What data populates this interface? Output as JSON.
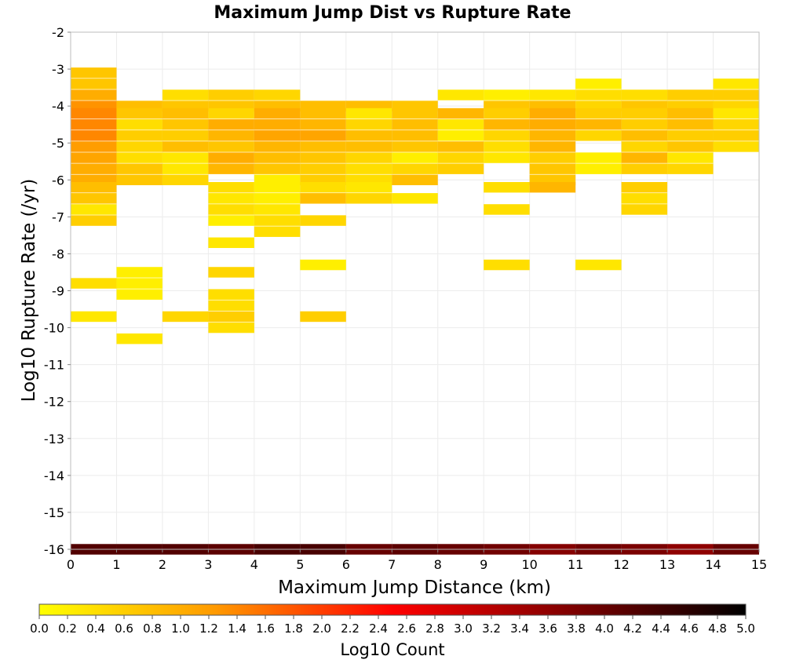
{
  "chart_data": {
    "type": "heatmap",
    "title": "Maximum Jump Dist vs Rupture Rate",
    "xlabel": "Maximum Jump Distance (km)",
    "ylabel": "Log10 Rupture Rate (/yr)",
    "xlim": [
      0,
      15
    ],
    "ylim": [
      -16,
      -2
    ],
    "x_ticks": [
      "0",
      "1",
      "2",
      "3",
      "4",
      "5",
      "6",
      "7",
      "8",
      "9",
      "10",
      "11",
      "12",
      "13",
      "14",
      "15"
    ],
    "y_ticks": [
      "-2",
      "-3",
      "-4",
      "-5",
      "-6",
      "-7",
      "-8",
      "-9",
      "-10",
      "-11",
      "-12",
      "-13",
      "-14",
      "-15",
      "-16"
    ],
    "grid": true,
    "cell_width": 1,
    "cell_height": 0.2857,
    "colorbar": {
      "label": "Log10 Count",
      "range": [
        0,
        5
      ],
      "colors": [
        "#ffff00",
        "#ff9900",
        "#ff0000",
        "#800000",
        "#000000"
      ],
      "ticks": [
        "0.0",
        "0.2",
        "0.4",
        "0.6",
        "0.8",
        "1.0",
        "1.2",
        "1.4",
        "1.6",
        "1.8",
        "2.0",
        "2.2",
        "2.4",
        "2.6",
        "2.8",
        "3.0",
        "3.2",
        "3.4",
        "3.6",
        "3.8",
        "4.0",
        "4.2",
        "4.4",
        "4.6",
        "4.8",
        "5.0"
      ]
    },
    "cells": [
      [
        0,
        -3.1,
        0.7
      ],
      [
        0,
        -3.4,
        0.7
      ],
      [
        0,
        -3.7,
        1.0
      ],
      [
        0,
        -4.0,
        1.3
      ],
      [
        0,
        -4.2,
        1.4
      ],
      [
        0,
        -4.5,
        1.4
      ],
      [
        0,
        -4.8,
        1.4
      ],
      [
        0,
        -5.1,
        1.2
      ],
      [
        0,
        -5.4,
        1.1
      ],
      [
        0,
        -5.7,
        1.0
      ],
      [
        0,
        -6.0,
        1.0
      ],
      [
        0,
        -6.2,
        0.8
      ],
      [
        0,
        -6.5,
        0.7
      ],
      [
        0,
        -6.8,
        0.3
      ],
      [
        0,
        -7.1,
        0.6
      ],
      [
        0,
        -8.8,
        0.4
      ],
      [
        0,
        -9.7,
        0.3
      ],
      [
        1,
        -4.0,
        0.8
      ],
      [
        1,
        -4.2,
        0.7
      ],
      [
        1,
        -4.5,
        0.4
      ],
      [
        1,
        -4.8,
        0.6
      ],
      [
        1,
        -5.1,
        0.5
      ],
      [
        1,
        -5.4,
        0.4
      ],
      [
        1,
        -5.7,
        0.7
      ],
      [
        1,
        -6.0,
        0.7
      ],
      [
        1,
        -8.5,
        0.2
      ],
      [
        1,
        -8.8,
        0.2
      ],
      [
        1,
        -9.1,
        0.2
      ],
      [
        1,
        -10.3,
        0.3
      ],
      [
        2,
        -3.7,
        0.4
      ],
      [
        2,
        -4.0,
        0.7
      ],
      [
        2,
        -4.2,
        0.8
      ],
      [
        2,
        -4.5,
        0.7
      ],
      [
        2,
        -4.8,
        0.6
      ],
      [
        2,
        -5.1,
        0.8
      ],
      [
        2,
        -5.4,
        0.3
      ],
      [
        2,
        -5.7,
        0.3
      ],
      [
        2,
        -6.0,
        0.5
      ],
      [
        2,
        -9.7,
        0.5
      ],
      [
        3,
        -3.7,
        0.6
      ],
      [
        3,
        -4.0,
        0.7
      ],
      [
        3,
        -4.2,
        0.5
      ],
      [
        3,
        -4.5,
        1.0
      ],
      [
        3,
        -4.8,
        0.9
      ],
      [
        3,
        -5.1,
        0.7
      ],
      [
        3,
        -5.4,
        1.0
      ],
      [
        3,
        -5.7,
        0.9
      ],
      [
        3,
        -6.2,
        0.4
      ],
      [
        3,
        -6.5,
        0.3
      ],
      [
        3,
        -6.8,
        0.4
      ],
      [
        3,
        -7.1,
        0.2
      ],
      [
        3,
        -7.7,
        0.3
      ],
      [
        3,
        -8.5,
        0.5
      ],
      [
        3,
        -9.1,
        0.4
      ],
      [
        3,
        -9.4,
        0.4
      ],
      [
        3,
        -9.7,
        0.6
      ],
      [
        3,
        -10.0,
        0.4
      ],
      [
        4,
        -3.7,
        0.5
      ],
      [
        4,
        -4.0,
        0.8
      ],
      [
        4,
        -4.2,
        1.0
      ],
      [
        4,
        -4.5,
        1.0
      ],
      [
        4,
        -4.8,
        1.1
      ],
      [
        4,
        -5.1,
        0.9
      ],
      [
        4,
        -5.4,
        0.8
      ],
      [
        4,
        -5.7,
        0.7
      ],
      [
        4,
        -6.0,
        0.2
      ],
      [
        4,
        -6.2,
        0.2
      ],
      [
        4,
        -6.5,
        0.2
      ],
      [
        4,
        -6.8,
        0.3
      ],
      [
        4,
        -7.1,
        0.4
      ],
      [
        4,
        -7.4,
        0.4
      ],
      [
        5,
        -4.0,
        0.8
      ],
      [
        5,
        -4.2,
        0.8
      ],
      [
        5,
        -4.5,
        0.9
      ],
      [
        5,
        -4.8,
        1.1
      ],
      [
        5,
        -5.1,
        0.8
      ],
      [
        5,
        -5.4,
        0.7
      ],
      [
        5,
        -5.7,
        0.6
      ],
      [
        5,
        -6.0,
        0.6
      ],
      [
        5,
        -6.2,
        0.4
      ],
      [
        5,
        -6.5,
        0.8
      ],
      [
        5,
        -7.1,
        0.5
      ],
      [
        5,
        -8.3,
        0.2
      ],
      [
        5,
        -9.7,
        0.6
      ],
      [
        6,
        -4.0,
        0.8
      ],
      [
        6,
        -4.2,
        0.3
      ],
      [
        6,
        -4.5,
        0.5
      ],
      [
        6,
        -4.8,
        0.8
      ],
      [
        6,
        -5.1,
        0.8
      ],
      [
        6,
        -5.4,
        0.5
      ],
      [
        6,
        -5.7,
        0.4
      ],
      [
        6,
        -6.0,
        0.4
      ],
      [
        6,
        -6.2,
        0.3
      ],
      [
        6,
        -6.5,
        0.5
      ],
      [
        7,
        -4.0,
        0.7
      ],
      [
        7,
        -4.2,
        0.7
      ],
      [
        7,
        -4.5,
        0.8
      ],
      [
        7,
        -4.8,
        0.8
      ],
      [
        7,
        -5.1,
        0.7
      ],
      [
        7,
        -5.4,
        0.2
      ],
      [
        7,
        -5.7,
        0.5
      ],
      [
        7,
        -6.0,
        0.8
      ],
      [
        7,
        -6.5,
        0.3
      ],
      [
        8,
        -3.7,
        0.3
      ],
      [
        8,
        -4.2,
        0.9
      ],
      [
        8,
        -4.5,
        0.3
      ],
      [
        8,
        -4.8,
        0.2
      ],
      [
        8,
        -5.1,
        0.8
      ],
      [
        8,
        -5.4,
        0.5
      ],
      [
        8,
        -5.7,
        0.6
      ],
      [
        9,
        -3.7,
        0.2
      ],
      [
        9,
        -4.0,
        0.7
      ],
      [
        9,
        -4.2,
        0.6
      ],
      [
        9,
        -4.5,
        0.9
      ],
      [
        9,
        -4.8,
        0.5
      ],
      [
        9,
        -5.1,
        0.4
      ],
      [
        9,
        -5.4,
        0.3
      ],
      [
        9,
        -6.2,
        0.4
      ],
      [
        9,
        -6.8,
        0.4
      ],
      [
        9,
        -8.3,
        0.4
      ],
      [
        10,
        -3.7,
        0.3
      ],
      [
        10,
        -4.0,
        0.8
      ],
      [
        10,
        -4.2,
        1.0
      ],
      [
        10,
        -4.5,
        1.0
      ],
      [
        10,
        -4.8,
        0.9
      ],
      [
        10,
        -5.1,
        0.9
      ],
      [
        10,
        -5.4,
        0.6
      ],
      [
        10,
        -5.7,
        0.7
      ],
      [
        10,
        -6.0,
        0.7
      ],
      [
        10,
        -6.2,
        0.9
      ],
      [
        11,
        -3.4,
        0.2
      ],
      [
        11,
        -3.7,
        0.4
      ],
      [
        11,
        -4.0,
        0.5
      ],
      [
        11,
        -4.2,
        0.6
      ],
      [
        11,
        -4.5,
        0.9
      ],
      [
        11,
        -4.8,
        0.5
      ],
      [
        11,
        -5.4,
        0.2
      ],
      [
        11,
        -5.7,
        0.2
      ],
      [
        11,
        -8.3,
        0.3
      ],
      [
        12,
        -3.7,
        0.4
      ],
      [
        12,
        -4.0,
        0.7
      ],
      [
        12,
        -4.2,
        0.6
      ],
      [
        12,
        -4.5,
        0.6
      ],
      [
        12,
        -4.8,
        0.8
      ],
      [
        12,
        -5.1,
        0.5
      ],
      [
        12,
        -5.4,
        0.9
      ],
      [
        12,
        -5.7,
        0.6
      ],
      [
        12,
        -6.2,
        0.6
      ],
      [
        12,
        -6.5,
        0.4
      ],
      [
        12,
        -6.8,
        0.5
      ],
      [
        13,
        -3.7,
        0.6
      ],
      [
        13,
        -4.0,
        0.6
      ],
      [
        13,
        -4.2,
        0.8
      ],
      [
        13,
        -4.5,
        0.8
      ],
      [
        13,
        -4.8,
        0.6
      ],
      [
        13,
        -5.1,
        0.7
      ],
      [
        13,
        -5.4,
        0.3
      ],
      [
        13,
        -5.7,
        0.5
      ],
      [
        14,
        -3.4,
        0.3
      ],
      [
        14,
        -3.7,
        0.6
      ],
      [
        14,
        -4.0,
        0.5
      ],
      [
        14,
        -4.2,
        0.3
      ],
      [
        14,
        -4.5,
        0.5
      ],
      [
        14,
        -4.8,
        0.6
      ],
      [
        14,
        -5.1,
        0.4
      ],
      [
        0,
        -16.0,
        4.2
      ],
      [
        1,
        -16.0,
        4.2
      ],
      [
        2,
        -16.0,
        4.2
      ],
      [
        3,
        -16.0,
        4.1
      ],
      [
        4,
        -16.0,
        4.3
      ],
      [
        5,
        -16.0,
        4.3
      ],
      [
        6,
        -16.0,
        4.0
      ],
      [
        7,
        -16.0,
        4.1
      ],
      [
        8,
        -16.0,
        4.0
      ],
      [
        9,
        -16.0,
        3.9
      ],
      [
        10,
        -16.0,
        3.7
      ],
      [
        11,
        -16.0,
        3.9
      ],
      [
        12,
        -16.0,
        3.8
      ],
      [
        13,
        -16.0,
        3.6
      ],
      [
        14,
        -16.0,
        4.0
      ]
    ]
  }
}
